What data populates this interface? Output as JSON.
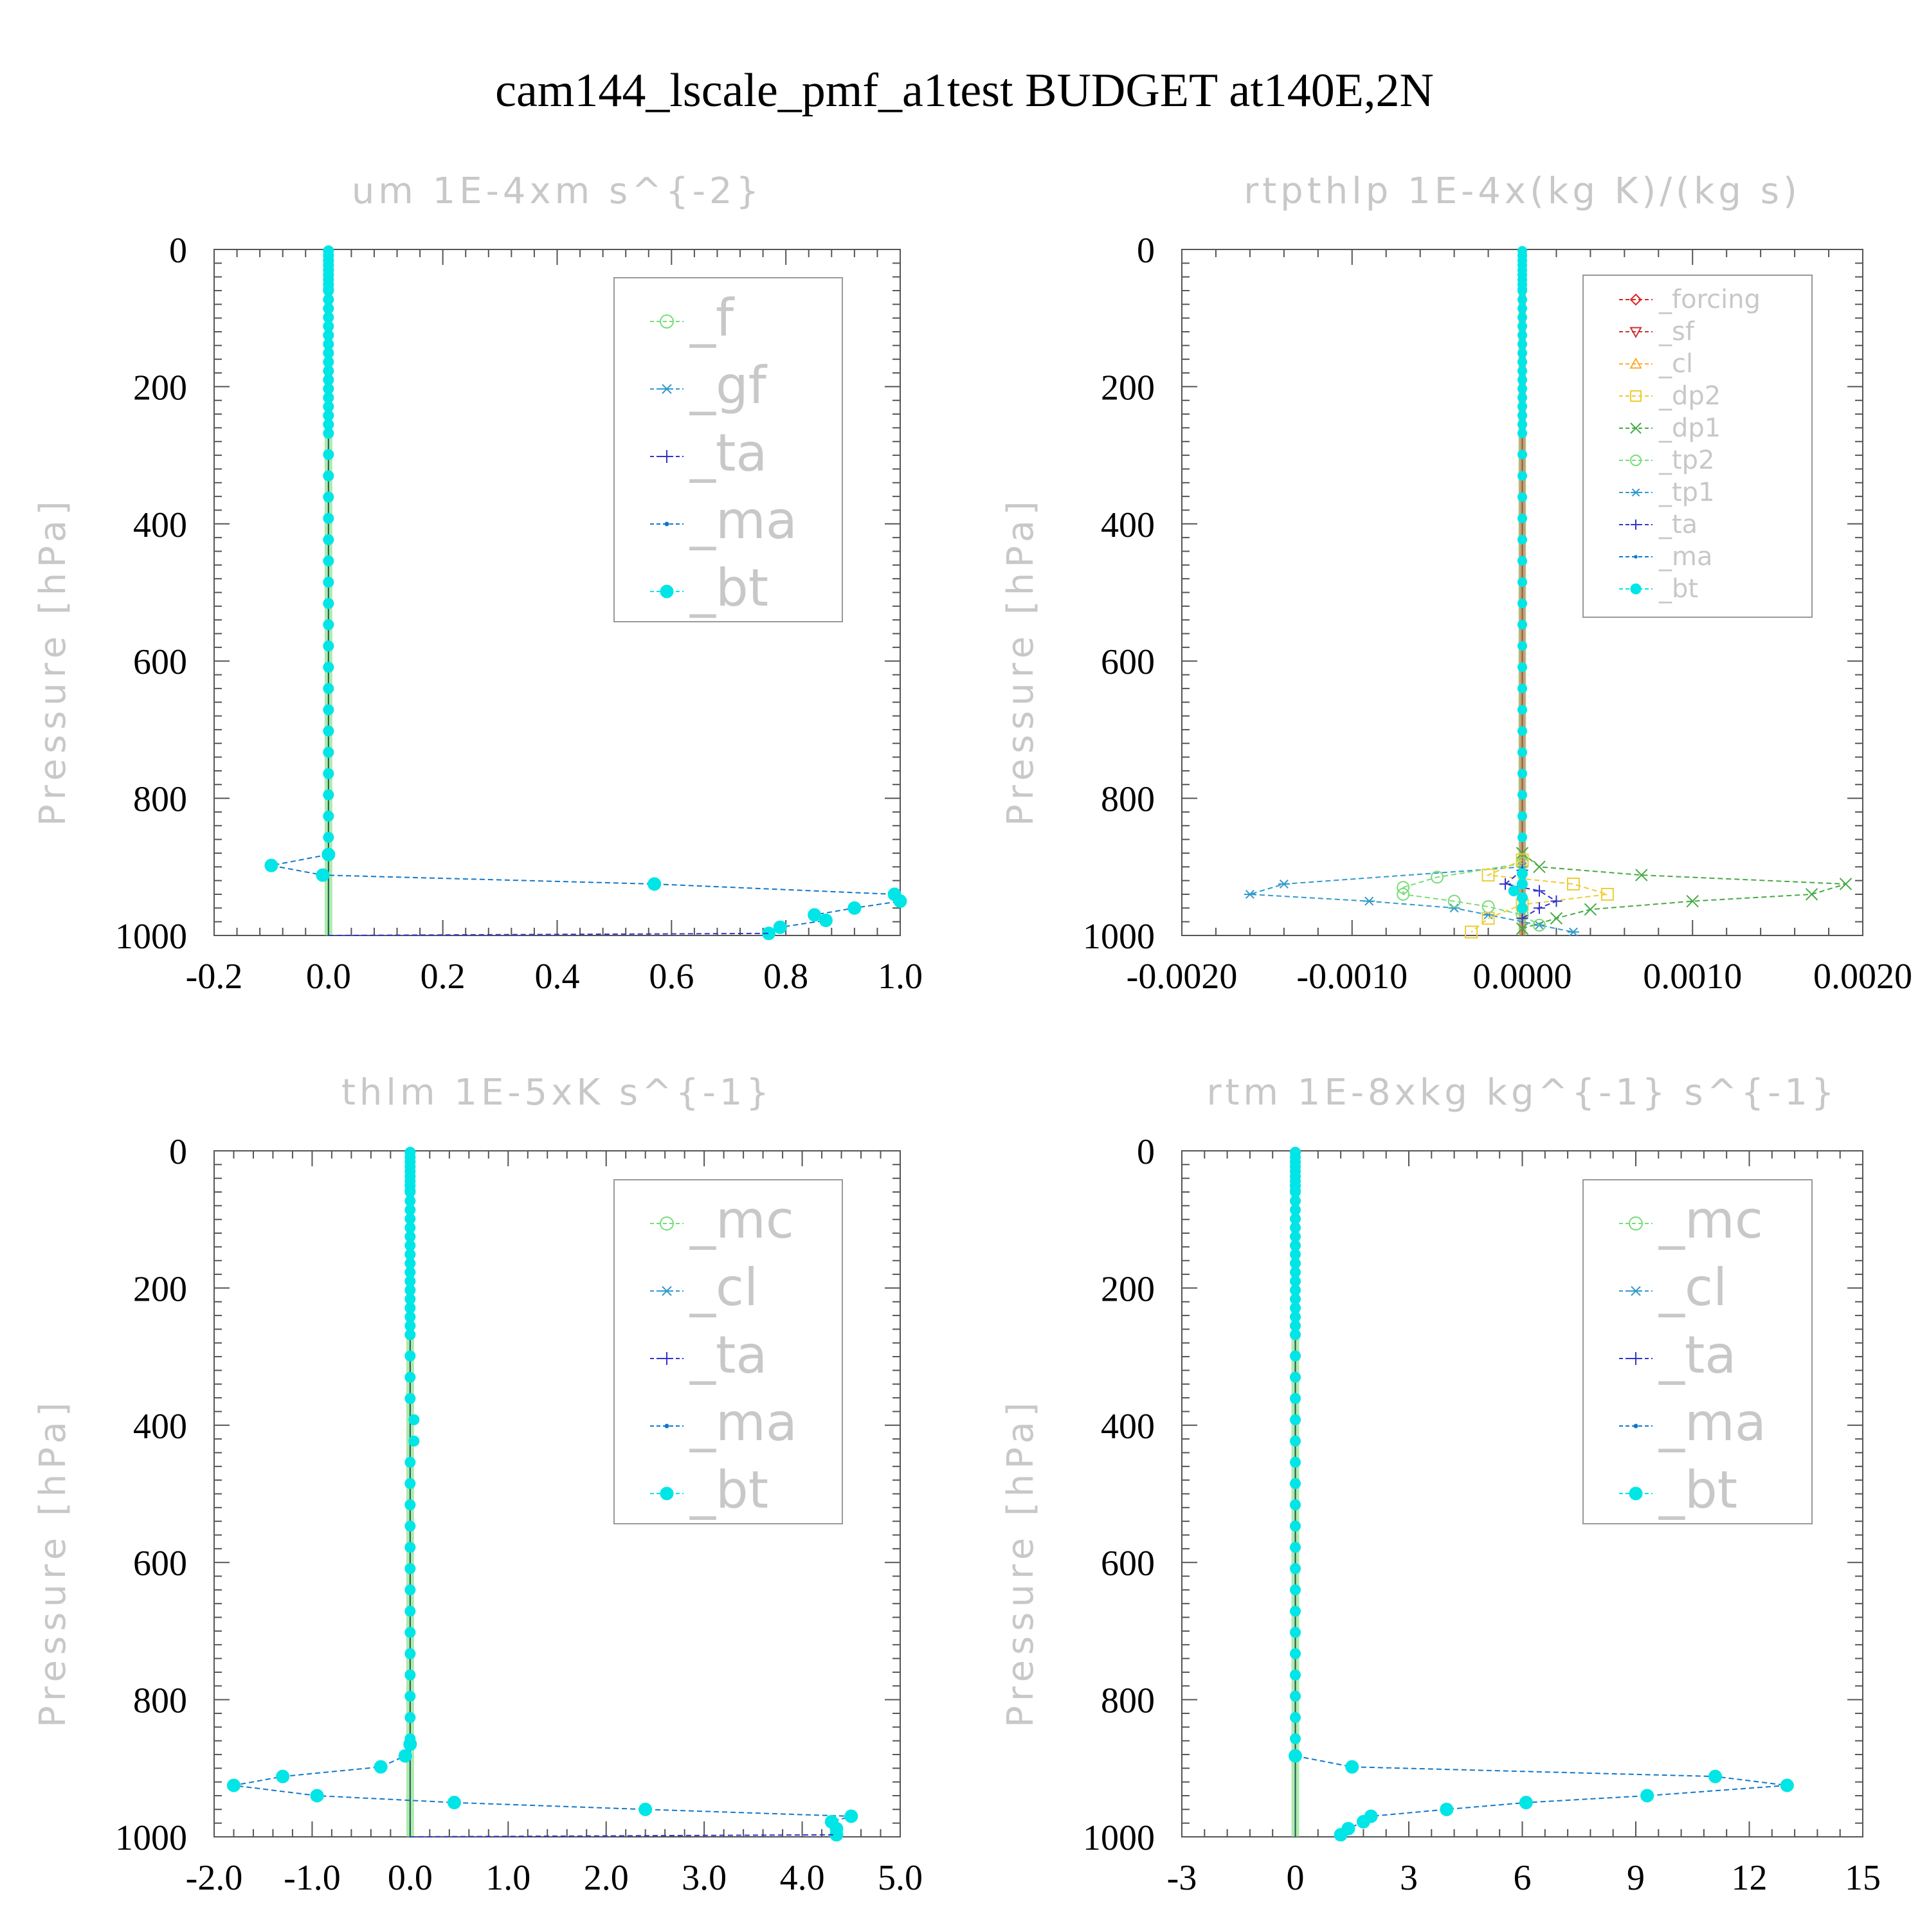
{
  "title": "cam144_lscale_pmf_a1test  BUDGET at140E,2N",
  "colors": {
    "frame": "#555555",
    "faint_text": "#c8c8c8",
    "legend_box": "#999999",
    "_f": "#77dd77",
    "_gf": "#3399cc",
    "_ta": "#3333cc",
    "_ma": "#1177cc",
    "_bt": "#00e5e5",
    "_mc": "#77dd77",
    "_cl": "#3399cc",
    "_forcing": "#dd2222",
    "_sf": "#cc3333",
    "_cl_small": "#ffaa33",
    "_dp2": "#eecc33",
    "_dp1": "#44aa44",
    "_tp2": "#77dd77",
    "_tp1": "#3399cc"
  },
  "chart_data": [
    {
      "type": "line",
      "panel_title": "um   1E-4xm s^{-2}",
      "ylabel": "Pressure [hPa]",
      "ylim": [
        1000,
        0
      ],
      "xlim": [
        -0.2,
        1.0
      ],
      "xtick_labels": [
        "-0.2",
        "0.0",
        "0.2",
        "0.4",
        "0.6",
        "0.8",
        "1.0"
      ],
      "ytick_labels": [
        "0",
        "200",
        "400",
        "600",
        "800",
        "1000"
      ],
      "legend": [
        {
          "label": "_f",
          "marker": "circle-open",
          "colorKey": "_f"
        },
        {
          "label": "_gf",
          "marker": "asterisk",
          "colorKey": "_gf"
        },
        {
          "label": "_ta",
          "marker": "plus",
          "colorKey": "_ta"
        },
        {
          "label": "_ma",
          "marker": "dot",
          "colorKey": "_ma"
        },
        {
          "label": "_bt",
          "marker": "filled-circle",
          "colorKey": "_bt"
        }
      ],
      "series": [
        {
          "name": "_bt",
          "colorKey": "_bt",
          "marker": "filled-circle",
          "points": [
            [
              0.0,
              882
            ],
            [
              -0.1,
              898
            ],
            [
              -0.01,
              912
            ],
            [
              0.57,
              925
            ],
            [
              0.99,
              940
            ],
            [
              1.0,
              950
            ],
            [
              0.92,
              960
            ],
            [
              0.85,
              970
            ],
            [
              0.87,
              978
            ],
            [
              0.79,
              988
            ],
            [
              0.77,
              997
            ]
          ]
        },
        {
          "name": "_ta",
          "colorKey": "_ta",
          "marker": "none",
          "points": [
            [
              0.0,
              1000
            ],
            [
              0.77,
              997
            ]
          ]
        }
      ]
    },
    {
      "type": "line",
      "panel_title": "rtpthlp   1E-4x(kg K)/(kg s)",
      "ylabel": "Pressure [hPa]",
      "ylim": [
        1000,
        0
      ],
      "xlim": [
        -0.002,
        0.002
      ],
      "xtick_labels": [
        "-0.0020",
        "-0.0010",
        "0.0000",
        "0.0010",
        "0.0020"
      ],
      "ytick_labels": [
        "0",
        "200",
        "400",
        "600",
        "800",
        "1000"
      ],
      "legend": [
        {
          "label": "_forcing",
          "marker": "diamond-open",
          "colorKey": "_forcing"
        },
        {
          "label": "_sf",
          "marker": "triangle-down",
          "colorKey": "_sf"
        },
        {
          "label": "_cl",
          "marker": "triangle-up",
          "colorKey": "_cl_small"
        },
        {
          "label": "_dp2",
          "marker": "square-open",
          "colorKey": "_dp2"
        },
        {
          "label": "_dp1",
          "marker": "cross",
          "colorKey": "_dp1"
        },
        {
          "label": "_tp2",
          "marker": "circle-open",
          "colorKey": "_tp2"
        },
        {
          "label": "_tp1",
          "marker": "asterisk",
          "colorKey": "_tp1"
        },
        {
          "label": "_ta",
          "marker": "plus",
          "colorKey": "_ta"
        },
        {
          "label": "_ma",
          "marker": "dot",
          "colorKey": "_ma"
        },
        {
          "label": "_bt",
          "marker": "filled-circle",
          "colorKey": "_bt"
        }
      ],
      "series": [
        {
          "name": "_tp1",
          "colorKey": "_tp1",
          "marker": "asterisk",
          "points": [
            [
              0.0,
              900
            ],
            [
              -0.0014,
              925
            ],
            [
              -0.0016,
              940
            ],
            [
              -0.0009,
              950
            ],
            [
              -0.0004,
              960
            ],
            [
              -0.0002,
              970
            ],
            [
              0.0001,
              985
            ],
            [
              0.0003,
              995
            ]
          ]
        },
        {
          "name": "_dp1",
          "colorKey": "_dp1",
          "marker": "cross",
          "points": [
            [
              0.0,
              880
            ],
            [
              0.0001,
              900
            ],
            [
              0.0007,
              912
            ],
            [
              0.0019,
              925
            ],
            [
              0.0017,
              940
            ],
            [
              0.001,
              950
            ],
            [
              0.0004,
              962
            ],
            [
              0.0002,
              975
            ],
            [
              0.0,
              990
            ]
          ]
        },
        {
          "name": "_tp2",
          "colorKey": "_tp2",
          "marker": "circle-open",
          "points": [
            [
              0.0,
              895
            ],
            [
              -0.0005,
              915
            ],
            [
              -0.0007,
              930
            ],
            [
              -0.0007,
              940
            ],
            [
              -0.0004,
              950
            ],
            [
              -0.0002,
              958
            ],
            [
              0.0,
              970
            ],
            [
              0.0001,
              985
            ]
          ]
        },
        {
          "name": "_dp2",
          "colorKey": "_dp2",
          "marker": "square-open",
          "points": [
            [
              0.0,
              890
            ],
            [
              -0.0002,
              912
            ],
            [
              0.0003,
              925
            ],
            [
              0.0005,
              940
            ],
            [
              0.0,
              955
            ],
            [
              -0.0002,
              975
            ],
            [
              -0.0003,
              995
            ]
          ]
        },
        {
          "name": "_ta",
          "colorKey": "_ta",
          "marker": "plus",
          "points": [
            [
              0.0,
              905
            ],
            [
              -0.0001,
              925
            ],
            [
              0.0001,
              935
            ],
            [
              0.0002,
              950
            ],
            [
              0.0001,
              960
            ],
            [
              0.0,
              975
            ]
          ]
        },
        {
          "name": "_bt",
          "colorKey": "_bt",
          "marker": "filled-circle",
          "points": [
            [
              0.0,
              910
            ],
            [
              0.0,
              925
            ],
            [
              -5e-05,
              935
            ],
            [
              0.0,
              945
            ],
            [
              0.0,
              960
            ]
          ]
        }
      ]
    },
    {
      "type": "line",
      "panel_title": "thlm   1E-5xK s^{-1}",
      "ylabel": "Pressure [hPa]",
      "ylim": [
        1000,
        0
      ],
      "xlim": [
        -2.0,
        5.0
      ],
      "xtick_labels": [
        "-2.0",
        "-1.0",
        "0.0",
        "1.0",
        "2.0",
        "3.0",
        "4.0",
        "5.0"
      ],
      "ytick_labels": [
        "0",
        "200",
        "400",
        "600",
        "800",
        "1000"
      ],
      "legend": [
        {
          "label": "_mc",
          "marker": "circle-open",
          "colorKey": "_mc"
        },
        {
          "label": "_cl",
          "marker": "asterisk",
          "colorKey": "_cl"
        },
        {
          "label": "_ta",
          "marker": "plus",
          "colorKey": "_ta"
        },
        {
          "label": "_ma",
          "marker": "dot",
          "colorKey": "_ma"
        },
        {
          "label": "_bt",
          "marker": "filled-circle",
          "colorKey": "_bt"
        }
      ],
      "series": [
        {
          "name": "_bt",
          "colorKey": "_bt",
          "marker": "filled-circle",
          "points": [
            [
              0.0,
              865
            ],
            [
              -0.05,
              882
            ],
            [
              -0.3,
              898
            ],
            [
              -1.3,
              912
            ],
            [
              -1.8,
              925
            ],
            [
              -0.95,
              940
            ],
            [
              0.45,
              950
            ],
            [
              2.4,
              960
            ],
            [
              4.5,
              970
            ],
            [
              4.3,
              978
            ],
            [
              4.35,
              988
            ],
            [
              4.35,
              997
            ]
          ]
        },
        {
          "name": "_ta",
          "colorKey": "_ta",
          "marker": "none",
          "points": [
            [
              0.0,
              1000
            ],
            [
              4.35,
              997
            ]
          ]
        }
      ]
    },
    {
      "type": "line",
      "panel_title": "rtm   1E-8xkg kg^{-1} s^{-1}",
      "ylabel": "Pressure [hPa]",
      "ylim": [
        1000,
        0
      ],
      "xlim": [
        -3,
        15
      ],
      "xtick_labels": [
        "-3",
        "0",
        "3",
        "6",
        "9",
        "12",
        "15"
      ],
      "ytick_labels": [
        "0",
        "200",
        "400",
        "600",
        "800",
        "1000"
      ],
      "legend": [
        {
          "label": "_mc",
          "marker": "circle-open",
          "colorKey": "_mc"
        },
        {
          "label": "_cl",
          "marker": "asterisk",
          "colorKey": "_cl"
        },
        {
          "label": "_ta",
          "marker": "plus",
          "colorKey": "_ta"
        },
        {
          "label": "_ma",
          "marker": "dot",
          "colorKey": "_ma"
        },
        {
          "label": "_bt",
          "marker": "filled-circle",
          "colorKey": "_bt"
        }
      ],
      "series": [
        {
          "name": "_bt",
          "colorKey": "_bt",
          "marker": "filled-circle",
          "points": [
            [
              0.0,
              882
            ],
            [
              1.5,
              898
            ],
            [
              11.1,
              912
            ],
            [
              13.0,
              925
            ],
            [
              9.3,
              940
            ],
            [
              6.1,
              950
            ],
            [
              4.0,
              960
            ],
            [
              2.0,
              970
            ],
            [
              1.8,
              978
            ],
            [
              1.4,
              988
            ],
            [
              1.2,
              997
            ]
          ]
        }
      ]
    }
  ]
}
